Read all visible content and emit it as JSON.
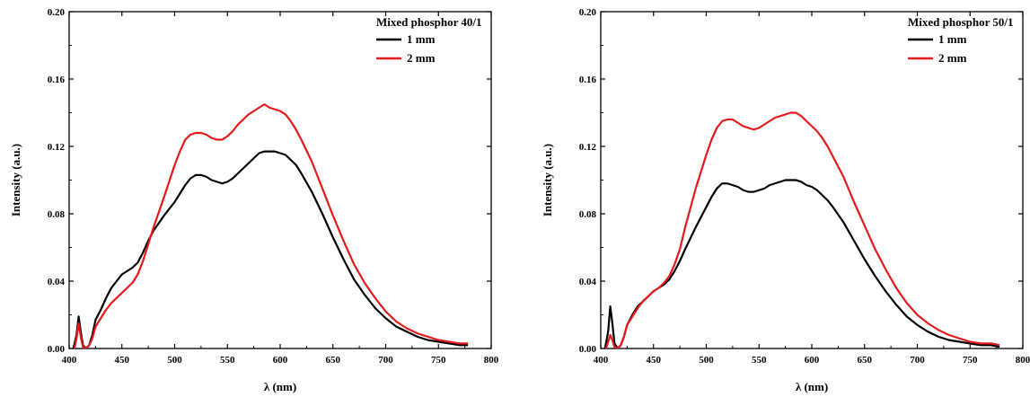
{
  "chart_data": [
    {
      "type": "line",
      "title": "",
      "xlabel": "λ (nm)",
      "ylabel": "Intensity (a.u.)",
      "xlim": [
        400,
        800
      ],
      "ylim": [
        0,
        0.2
      ],
      "xticks": [
        400,
        450,
        500,
        550,
        600,
        650,
        700,
        750,
        800
      ],
      "xtick_labels": [
        "400",
        "450",
        "500",
        "550",
        "600",
        "650",
        "700",
        "750",
        "800"
      ],
      "yticks": [
        0,
        0.04,
        0.08,
        0.12,
        0.16,
        0.2
      ],
      "ytick_labels": [
        "0.00",
        "0.04",
        "0.08",
        "0.12",
        "0.16",
        "0.20"
      ],
      "grid": false,
      "legend_position": "top-right",
      "legend_title": "Mixed phosphor 40/1",
      "series": [
        {
          "name": "1 mm",
          "color": "#000000",
          "x": [
            404,
            407,
            409,
            411,
            413,
            416,
            419,
            422,
            425,
            430,
            435,
            440,
            445,
            450,
            455,
            460,
            465,
            470,
            475,
            480,
            490,
            500,
            505,
            510,
            515,
            520,
            525,
            530,
            535,
            540,
            545,
            550,
            555,
            560,
            565,
            570,
            575,
            580,
            585,
            590,
            595,
            600,
            605,
            610,
            615,
            620,
            630,
            640,
            650,
            660,
            670,
            680,
            690,
            700,
            710,
            720,
            730,
            740,
            750,
            760,
            770,
            778
          ],
          "values": [
            0.0,
            0.008,
            0.019,
            0.01,
            0.002,
            0.0,
            0.002,
            0.008,
            0.017,
            0.023,
            0.03,
            0.036,
            0.04,
            0.044,
            0.046,
            0.048,
            0.051,
            0.057,
            0.064,
            0.07,
            0.079,
            0.087,
            0.092,
            0.097,
            0.101,
            0.103,
            0.103,
            0.102,
            0.1,
            0.099,
            0.098,
            0.099,
            0.101,
            0.104,
            0.107,
            0.11,
            0.113,
            0.116,
            0.117,
            0.117,
            0.117,
            0.116,
            0.115,
            0.112,
            0.109,
            0.104,
            0.093,
            0.08,
            0.066,
            0.053,
            0.041,
            0.032,
            0.024,
            0.018,
            0.013,
            0.01,
            0.007,
            0.005,
            0.004,
            0.003,
            0.002,
            0.002
          ]
        },
        {
          "name": "2 mm",
          "color": "#e31a1c",
          "x": [
            405,
            407,
            409,
            411,
            413,
            416,
            419,
            422,
            425,
            430,
            435,
            440,
            445,
            450,
            455,
            460,
            465,
            470,
            475,
            480,
            490,
            500,
            505,
            510,
            515,
            520,
            525,
            530,
            535,
            540,
            545,
            550,
            555,
            560,
            565,
            570,
            575,
            580,
            585,
            590,
            595,
            600,
            605,
            610,
            615,
            620,
            630,
            640,
            650,
            660,
            670,
            680,
            690,
            700,
            710,
            720,
            730,
            740,
            750,
            760,
            770,
            778
          ],
          "values": [
            0.0,
            0.006,
            0.015,
            0.007,
            0.001,
            0.0,
            0.002,
            0.006,
            0.013,
            0.018,
            0.023,
            0.027,
            0.03,
            0.033,
            0.036,
            0.039,
            0.044,
            0.052,
            0.062,
            0.072,
            0.09,
            0.109,
            0.117,
            0.124,
            0.127,
            0.128,
            0.128,
            0.127,
            0.125,
            0.124,
            0.124,
            0.126,
            0.129,
            0.133,
            0.136,
            0.139,
            0.141,
            0.143,
            0.145,
            0.143,
            0.142,
            0.141,
            0.139,
            0.135,
            0.13,
            0.124,
            0.111,
            0.095,
            0.079,
            0.064,
            0.05,
            0.039,
            0.03,
            0.022,
            0.016,
            0.012,
            0.009,
            0.007,
            0.005,
            0.004,
            0.003,
            0.003
          ]
        }
      ]
    },
    {
      "type": "line",
      "title": "",
      "xlabel": "λ (nm)",
      "ylabel": "Intensity (a.u.)",
      "xlim": [
        400,
        800
      ],
      "ylim": [
        0,
        0.2
      ],
      "xticks": [
        400,
        450,
        500,
        550,
        600,
        650,
        700,
        750,
        800
      ],
      "xtick_labels": [
        "400",
        "450",
        "500",
        "550",
        "600",
        "650",
        "700",
        "750",
        "800"
      ],
      "yticks": [
        0,
        0.04,
        0.08,
        0.12,
        0.16,
        0.2
      ],
      "ytick_labels": [
        "0.00",
        "0.04",
        "0.08",
        "0.12",
        "0.16",
        "0.20"
      ],
      "grid": false,
      "legend_position": "top-right",
      "legend_title": "Mixed phosphor 50/1",
      "series": [
        {
          "name": "1 mm",
          "color": "#000000",
          "x": [
            404,
            407,
            409,
            411,
            413,
            416,
            419,
            422,
            425,
            430,
            435,
            440,
            445,
            450,
            455,
            460,
            465,
            470,
            475,
            480,
            490,
            500,
            505,
            510,
            515,
            520,
            525,
            530,
            535,
            540,
            545,
            550,
            555,
            560,
            565,
            570,
            575,
            580,
            585,
            590,
            595,
            600,
            605,
            610,
            615,
            620,
            630,
            640,
            650,
            660,
            670,
            680,
            690,
            700,
            710,
            720,
            730,
            740,
            750,
            760,
            770,
            778
          ],
          "values": [
            0.0,
            0.01,
            0.025,
            0.015,
            0.003,
            0.0,
            0.002,
            0.007,
            0.014,
            0.02,
            0.025,
            0.028,
            0.031,
            0.034,
            0.036,
            0.038,
            0.041,
            0.046,
            0.052,
            0.059,
            0.072,
            0.084,
            0.09,
            0.095,
            0.098,
            0.098,
            0.097,
            0.096,
            0.094,
            0.093,
            0.093,
            0.094,
            0.095,
            0.097,
            0.098,
            0.099,
            0.1,
            0.1,
            0.1,
            0.099,
            0.097,
            0.096,
            0.094,
            0.091,
            0.088,
            0.084,
            0.075,
            0.064,
            0.053,
            0.043,
            0.034,
            0.026,
            0.019,
            0.014,
            0.01,
            0.007,
            0.005,
            0.004,
            0.003,
            0.002,
            0.002,
            0.001
          ]
        },
        {
          "name": "2 mm",
          "color": "#e31a1c",
          "x": [
            405,
            407,
            409,
            411,
            413,
            416,
            419,
            422,
            425,
            430,
            435,
            440,
            445,
            450,
            455,
            460,
            465,
            470,
            475,
            480,
            490,
            500,
            505,
            510,
            515,
            520,
            525,
            530,
            535,
            540,
            545,
            550,
            555,
            560,
            565,
            570,
            575,
            580,
            585,
            590,
            595,
            600,
            605,
            610,
            615,
            620,
            630,
            640,
            650,
            660,
            670,
            680,
            690,
            700,
            710,
            720,
            730,
            740,
            750,
            760,
            770,
            778
          ],
          "values": [
            0.0,
            0.004,
            0.008,
            0.005,
            0.001,
            0.0,
            0.002,
            0.007,
            0.014,
            0.019,
            0.024,
            0.028,
            0.031,
            0.034,
            0.036,
            0.039,
            0.043,
            0.05,
            0.059,
            0.072,
            0.095,
            0.115,
            0.124,
            0.131,
            0.135,
            0.136,
            0.136,
            0.134,
            0.132,
            0.131,
            0.13,
            0.131,
            0.133,
            0.135,
            0.137,
            0.138,
            0.139,
            0.14,
            0.14,
            0.138,
            0.135,
            0.132,
            0.129,
            0.125,
            0.12,
            0.114,
            0.102,
            0.087,
            0.073,
            0.059,
            0.047,
            0.036,
            0.027,
            0.02,
            0.015,
            0.011,
            0.008,
            0.006,
            0.004,
            0.003,
            0.003,
            0.002
          ]
        }
      ]
    }
  ]
}
